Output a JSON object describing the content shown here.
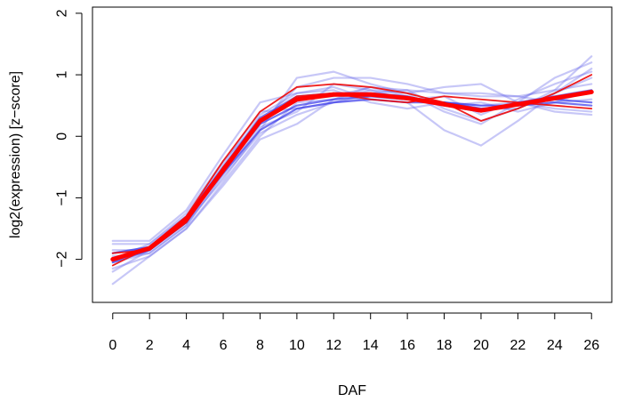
{
  "chart_data": {
    "type": "line",
    "title": "",
    "xlabel": "DAF",
    "ylabel": "log2(expression) [z−score]",
    "x": [
      0,
      2,
      4,
      6,
      8,
      10,
      12,
      14,
      16,
      18,
      20,
      22,
      24,
      26
    ],
    "x_tick_labels": [
      "0",
      "2",
      "4",
      "6",
      "8",
      "10",
      "12",
      "14",
      "16",
      "18",
      "20",
      "22",
      "24",
      "26"
    ],
    "y_ticks": [
      -2,
      -1,
      0,
      1,
      2
    ],
    "y_tick_labels": [
      "−2",
      "−1",
      "0",
      "1",
      "2"
    ],
    "xlim": [
      -1.1,
      27.1
    ],
    "ylim": [
      -2.7,
      2.1
    ],
    "grid": false,
    "legend": "none",
    "colors": {
      "faint_series": "#6b6bea",
      "mid_series": "#3b3bea",
      "highlight_series": "#ee1111",
      "mean_series": "#ff0000"
    },
    "series": [
      {
        "style": "faint",
        "values": [
          -2.4,
          -1.95,
          -1.5,
          -0.8,
          -0.05,
          0.2,
          0.6,
          0.8,
          0.75,
          0.45,
          0.25,
          0.45,
          0.75,
          1.3
        ]
      },
      {
        "style": "faint",
        "values": [
          -2.2,
          -1.85,
          -1.4,
          -0.7,
          0.1,
          0.95,
          1.05,
          0.85,
          0.7,
          0.8,
          0.85,
          0.55,
          0.95,
          1.2
        ]
      },
      {
        "style": "faint",
        "values": [
          -1.7,
          -1.7,
          -1.2,
          -0.3,
          0.55,
          0.7,
          0.8,
          0.6,
          0.55,
          0.1,
          -0.15,
          0.25,
          0.7,
          1.1
        ]
      },
      {
        "style": "faint",
        "values": [
          -1.75,
          -1.75,
          -1.3,
          -0.45,
          0.4,
          0.45,
          0.55,
          0.65,
          0.6,
          0.55,
          0.5,
          0.55,
          0.45,
          0.4
        ]
      },
      {
        "style": "faint",
        "values": [
          -2.05,
          -1.9,
          -1.45,
          -0.65,
          0.05,
          0.35,
          0.55,
          0.7,
          0.75,
          0.7,
          0.7,
          0.65,
          0.55,
          0.6
        ]
      },
      {
        "style": "faint",
        "values": [
          -1.9,
          -1.8,
          -1.35,
          -0.5,
          0.2,
          0.8,
          0.95,
          0.95,
          0.85,
          0.7,
          0.65,
          0.65,
          0.75,
          0.85
        ]
      },
      {
        "style": "faint",
        "values": [
          -2.15,
          -1.95,
          -1.5,
          -0.75,
          0.0,
          0.55,
          0.6,
          0.75,
          0.7,
          0.4,
          0.2,
          0.55,
          0.4,
          0.35
        ]
      },
      {
        "style": "faint",
        "values": [
          -1.85,
          -1.85,
          -1.4,
          -0.55,
          0.35,
          0.7,
          0.75,
          0.55,
          0.45,
          0.55,
          0.45,
          0.45,
          0.7,
          0.95
        ]
      },
      {
        "style": "faint",
        "values": [
          -2.0,
          -1.75,
          -1.25,
          -0.4,
          0.25,
          0.6,
          0.65,
          0.8,
          0.65,
          0.5,
          0.55,
          0.4,
          0.55,
          0.75
        ]
      },
      {
        "style": "faint",
        "values": [
          -1.95,
          -1.9,
          -1.45,
          -0.6,
          0.15,
          0.4,
          0.85,
          0.75,
          0.6,
          0.65,
          0.35,
          0.6,
          0.85,
          1.05
        ]
      },
      {
        "style": "mid",
        "values": [
          -2.05,
          -1.85,
          -1.4,
          -0.55,
          0.2,
          0.5,
          0.6,
          0.65,
          0.6,
          0.55,
          0.45,
          0.5,
          0.6,
          0.55
        ]
      },
      {
        "style": "mid",
        "values": [
          -1.9,
          -1.8,
          -1.3,
          -0.5,
          0.3,
          0.65,
          0.7,
          0.7,
          0.65,
          0.5,
          0.4,
          0.55,
          0.65,
          0.75
        ]
      },
      {
        "style": "mid",
        "values": [
          -2.0,
          -1.85,
          -1.35,
          -0.6,
          0.1,
          0.45,
          0.55,
          0.6,
          0.55,
          0.55,
          0.5,
          0.5,
          0.55,
          0.5
        ]
      },
      {
        "style": "highlight",
        "values": [
          -2.1,
          -1.8,
          -1.3,
          -0.4,
          0.4,
          0.8,
          0.85,
          0.8,
          0.7,
          0.55,
          0.25,
          0.45,
          0.7,
          1.0
        ]
      },
      {
        "style": "highlight",
        "values": [
          -1.9,
          -1.85,
          -1.4,
          -0.5,
          0.25,
          0.65,
          0.7,
          0.6,
          0.55,
          0.65,
          0.6,
          0.55,
          0.5,
          0.45
        ]
      },
      {
        "style": "mean",
        "values": [
          -2.0,
          -1.82,
          -1.35,
          -0.55,
          0.25,
          0.6,
          0.68,
          0.68,
          0.62,
          0.52,
          0.42,
          0.52,
          0.62,
          0.72
        ]
      }
    ]
  }
}
